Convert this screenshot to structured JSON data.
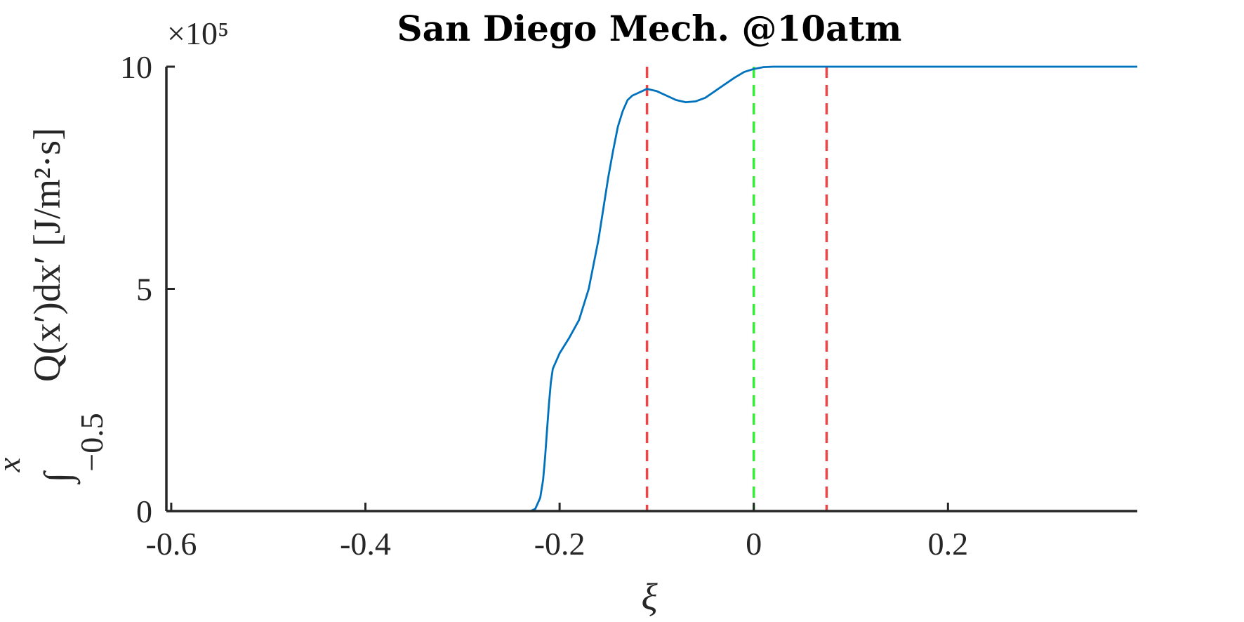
{
  "chart_data": {
    "type": "line",
    "title": "San Diego Mech. @10atm",
    "xlabel": "ξ",
    "ylabel_integral": "∫",
    "ylabel_lower_limit": "−0.5",
    "ylabel_upper_limit": "x",
    "ylabel": "Q(x′)dx′ [J/m²·s]",
    "y_exponent_label": "×10⁵",
    "xlim": [
      -0.605,
      0.395
    ],
    "ylim": [
      0,
      10
    ],
    "x_ticks": [
      -0.6,
      -0.4,
      -0.2,
      0,
      0.2
    ],
    "x_tick_labels": [
      "-0.6",
      "-0.4",
      "-0.2",
      "0",
      "0.2"
    ],
    "y_ticks": [
      0,
      5,
      10
    ],
    "y_tick_labels": [
      "0",
      "5",
      "10"
    ],
    "grid": false,
    "series": [
      {
        "color": "#0072BD",
        "x": [
          -0.605,
          -0.4,
          -0.3,
          -0.23,
          -0.225,
          -0.22,
          -0.217,
          -0.215,
          -0.213,
          -0.211,
          -0.209,
          -0.207,
          -0.205,
          -0.2,
          -0.19,
          -0.18,
          -0.17,
          -0.16,
          -0.15,
          -0.145,
          -0.14,
          -0.135,
          -0.13,
          -0.125,
          -0.12,
          -0.115,
          -0.11,
          -0.1,
          -0.09,
          -0.08,
          -0.07,
          -0.06,
          -0.05,
          -0.04,
          -0.03,
          -0.02,
          -0.01,
          0,
          0.01,
          0.02,
          0.03,
          0.05,
          0.1,
          0.2,
          0.3,
          0.395
        ],
        "y": [
          0,
          0,
          0,
          0,
          0.05,
          0.3,
          0.7,
          1.2,
          1.8,
          2.4,
          2.9,
          3.2,
          3.3,
          3.55,
          3.9,
          4.3,
          5.0,
          6.1,
          7.5,
          8.1,
          8.65,
          9.0,
          9.25,
          9.35,
          9.4,
          9.45,
          9.5,
          9.45,
          9.35,
          9.25,
          9.2,
          9.22,
          9.3,
          9.45,
          9.6,
          9.75,
          9.88,
          9.95,
          9.99,
          10,
          10,
          10,
          10,
          10,
          10,
          10
        ]
      }
    ],
    "reference_lines": [
      {
        "x": -0.11,
        "color": "#EE4444",
        "style": "dashed"
      },
      {
        "x": 0.0,
        "color": "#33EE33",
        "style": "dashed"
      },
      {
        "x": 0.075,
        "color": "#EE4444",
        "style": "dashed"
      }
    ]
  }
}
